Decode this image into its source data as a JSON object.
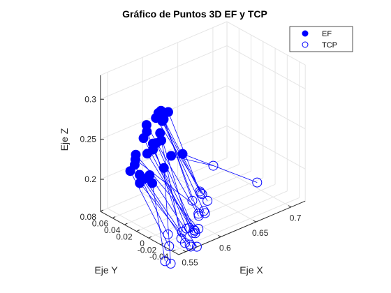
{
  "colors": {
    "ef_fill": "#0000ff",
    "tcp_edge": "#0000ff",
    "link_line": "#0000ff",
    "grid": "#e5e5e5",
    "axis": "#262626"
  },
  "chart_data": {
    "type": "scatter",
    "projection": "3d",
    "title": "Gráfico de Puntos 3D EF y TCP",
    "xlabel": "Eje X",
    "ylabel": "Eje Y",
    "zlabel": "Eje Z",
    "xlim": [
      0.54,
      0.72
    ],
    "ylim": [
      -0.05,
      0.08
    ],
    "zlim": [
      0.16,
      0.33
    ],
    "xticks": [
      0.55,
      0.6,
      0.65,
      0.7
    ],
    "xtick_labels": [
      "0.55",
      "0.6",
      "0.65",
      "0.7"
    ],
    "yticks": [
      -0.04,
      -0.02,
      0,
      0.02,
      0.04,
      0.06,
      0.08
    ],
    "ytick_labels": [
      "-0.04",
      "-0.02",
      "0",
      "0.02",
      "0.04",
      "0.06",
      "0.08"
    ],
    "zticks": [
      0.2,
      0.25,
      0.3
    ],
    "ztick_labels": [
      "0.2",
      "0.25",
      "0.3"
    ],
    "grid": true,
    "legend": {
      "position": "top-right",
      "entries": [
        "EF",
        "TCP"
      ]
    },
    "series": [
      {
        "name": "EF",
        "marker": "filled-circle",
        "points": [
          [
            0.571,
            0.02,
            0.2963
          ],
          [
            0.585,
            0.02,
            0.2923
          ],
          [
            0.58,
            0.025,
            0.2876
          ],
          [
            0.579,
            0.025,
            0.294
          ],
          [
            0.576,
            0.03,
            0.284
          ],
          [
            0.586,
            0.031,
            0.2759
          ],
          [
            0.588,
            0.031,
            0.2776
          ],
          [
            0.567,
            0.035,
            0.2766
          ],
          [
            0.57,
            0.038,
            0.2659
          ],
          [
            0.582,
            0.03,
            0.2629
          ],
          [
            0.567,
            0.04,
            0.258
          ],
          [
            0.58,
            0.034,
            0.2495
          ],
          [
            0.577,
            0.036,
            0.2416
          ],
          [
            0.576,
            0.035,
            0.25
          ],
          [
            0.588,
            0.035,
            0.2494
          ],
          [
            0.574,
            0.042,
            0.2352
          ],
          [
            0.562,
            0.047,
            0.2363
          ],
          [
            0.564,
            0.05,
            0.2283
          ],
          [
            0.563,
            0.05,
            0.222
          ],
          [
            0.561,
            0.055,
            0.2129
          ],
          [
            0.57,
            0.05,
            0.207
          ],
          [
            0.572,
            0.052,
            0.195
          ],
          [
            0.575,
            0.048,
            0.201
          ],
          [
            0.58,
            0.045,
            0.205
          ],
          [
            0.582,
            0.043,
            0.195
          ],
          [
            0.596,
            0.04,
            0.21
          ],
          [
            0.602,
            0.035,
            0.225
          ],
          [
            0.614,
            0.03,
            0.225
          ]
        ]
      },
      {
        "name": "TCP",
        "marker": "open-circle",
        "points": [
          [
            0.597,
            -0.02,
            0.203
          ],
          [
            0.6,
            -0.015,
            0.202
          ],
          [
            0.605,
            -0.013,
            0.196
          ],
          [
            0.591,
            -0.013,
            0.193
          ],
          [
            0.61,
            -0.016,
            0.187
          ],
          [
            0.604,
            -0.017,
            0.177
          ],
          [
            0.598,
            -0.015,
            0.175
          ],
          [
            0.601,
            -0.012,
            0.17
          ],
          [
            0.582,
            -0.014,
            0.162
          ],
          [
            0.584,
            -0.016,
            0.163
          ],
          [
            0.59,
            -0.015,
            0.154
          ],
          [
            0.597,
            -0.01,
            0.152
          ],
          [
            0.602,
            -0.005,
            0.145
          ],
          [
            0.585,
            -0.003,
            0.152
          ],
          [
            0.589,
            0.003,
            0.14
          ],
          [
            0.6,
            -0.005,
            0.15
          ],
          [
            0.604,
            -0.008,
            0.151
          ],
          [
            0.61,
            -0.012,
            0.17
          ],
          [
            0.576,
            0.01,
            0.147
          ],
          [
            0.576,
            0.008,
            0.133
          ],
          [
            0.59,
            -0.002,
            0.136
          ],
          [
            0.595,
            -0.004,
            0.133
          ],
          [
            0.6,
            0.0,
            0.127
          ],
          [
            0.6,
            -0.01,
            0.131
          ],
          [
            0.572,
            0.01,
            0.115
          ],
          [
            0.58,
            0.01,
            0.109
          ],
          [
            0.632,
            0.0,
            0.216
          ],
          [
            0.685,
            -0.011,
            0.18
          ]
        ]
      }
    ]
  }
}
